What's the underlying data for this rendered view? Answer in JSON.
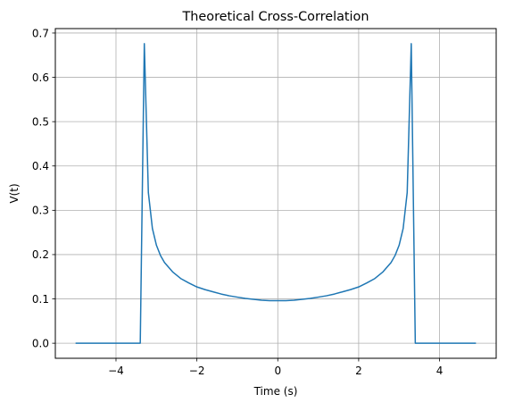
{
  "chart_data": {
    "type": "line",
    "title": "Theoretical Cross-Correlation",
    "xlabel": "Time (s)",
    "ylabel": "V(t)",
    "xlim": [
      -5.5,
      5.4
    ],
    "ylim": [
      -0.034,
      0.71
    ],
    "grid": true,
    "xticks": [
      -4,
      -2,
      0,
      2,
      4
    ],
    "xtick_labels": [
      "−4",
      "−2",
      "0",
      "2",
      "4"
    ],
    "yticks": [
      0.0,
      0.1,
      0.2,
      0.3,
      0.4,
      0.5,
      0.6,
      0.7
    ],
    "ytick_labels": [
      "0.0",
      "0.1",
      "0.2",
      "0.3",
      "0.4",
      "0.5",
      "0.6",
      "0.7"
    ],
    "series": [
      {
        "color": "#1f77b4",
        "x": [
          -5.0,
          -3.4,
          -3.3,
          -3.2,
          -3.1,
          -3.0,
          -2.9,
          -2.8,
          -2.6,
          -2.4,
          -2.2,
          -2.0,
          -1.8,
          -1.6,
          -1.4,
          -1.2,
          -1.0,
          -0.8,
          -0.6,
          -0.4,
          -0.2,
          0.0,
          0.2,
          0.4,
          0.6,
          0.8,
          1.0,
          1.2,
          1.4,
          1.6,
          1.8,
          2.0,
          2.2,
          2.4,
          2.6,
          2.8,
          2.9,
          3.0,
          3.1,
          3.2,
          3.3,
          3.4,
          4.9
        ],
        "y": [
          0.0,
          0.0,
          0.676,
          0.34,
          0.259,
          0.221,
          0.198,
          0.182,
          0.161,
          0.146,
          0.136,
          0.127,
          0.121,
          0.116,
          0.111,
          0.107,
          0.104,
          0.101,
          0.099,
          0.097,
          0.096,
          0.096,
          0.096,
          0.097,
          0.099,
          0.101,
          0.104,
          0.107,
          0.111,
          0.116,
          0.121,
          0.127,
          0.136,
          0.146,
          0.161,
          0.182,
          0.198,
          0.221,
          0.259,
          0.34,
          0.676,
          0.0,
          0.0
        ]
      }
    ]
  }
}
